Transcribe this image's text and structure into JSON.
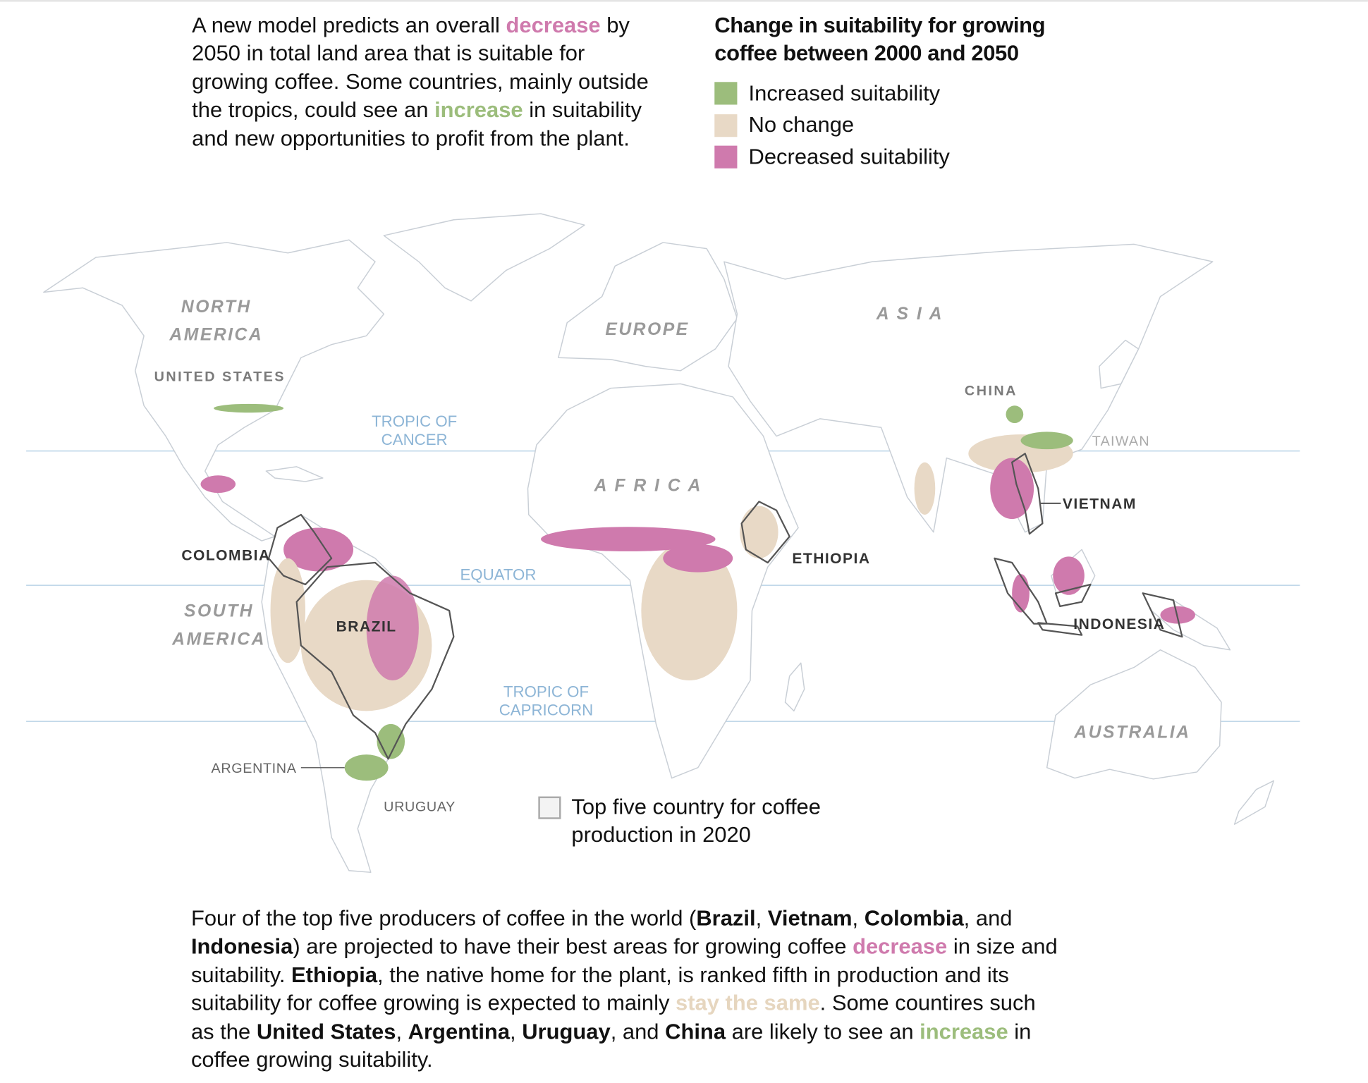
{
  "intro": {
    "part1": "A new model predicts an overall ",
    "decrease": "decrease",
    "part2": " by 2050 in total land area that is suitable for growing coffee. Some countries, mainly outside the tropics, could see an ",
    "increase": "increase",
    "part3": " in suitability and new opportunities to profit from the plant."
  },
  "legend": {
    "title": "Change in suitability for growing coffee between 2000 and 2050",
    "items": [
      {
        "label": "Increased suitability",
        "color": "#9cbd7c"
      },
      {
        "label": "No change",
        "color": "#e8d9c6"
      },
      {
        "label": "Decreased suitability",
        "color": "#cf7aad"
      }
    ]
  },
  "map": {
    "continents": {
      "north_america_1": "NORTH",
      "north_america_2": "AMERICA",
      "south_america_1": "SOUTH",
      "south_america_2": "AMERICA",
      "europe": "EUROPE",
      "asia": "A S I A",
      "africa": "A F R I C A",
      "australia": "AUSTRALIA"
    },
    "countries": {
      "united_states": "UNITED STATES",
      "china": "CHINA",
      "taiwan": "TAIWAN",
      "argentina": "ARGENTINA",
      "uruguay": "URUGUAY"
    },
    "top_five": {
      "colombia": "COLOMBIA",
      "brazil": "BRAZIL",
      "ethiopia": "ETHIOPIA",
      "vietnam": "VIETNAM",
      "indonesia": "INDONESIA"
    },
    "lines": {
      "cancer_1": "TROPIC OF",
      "cancer_2": "CANCER",
      "equator": "EQUATOR",
      "capricorn_1": "TROPIC OF",
      "capricorn_2": "CAPRICORN"
    },
    "top_five_legend": "Top five country for coffee production in 2020",
    "colors": {
      "increase": "#9cbd7c",
      "no_change": "#e8d9c6",
      "decrease": "#cf7aad",
      "tropic_line": "#b9d3e6"
    }
  },
  "outro": {
    "s1": "Four of the top five producers of coffee in the world (",
    "brazil": "Brazil",
    "c1": ", ",
    "vietnam": "Vietnam",
    "c2": ", ",
    "colombia": "Colombia",
    "c3": ", and ",
    "indonesia": "Indonesia",
    "s2": ") are projected to have their best areas for growing coffee ",
    "decrease": "decrease",
    "s3": " in size and suitability. ",
    "ethiopia": "Ethiopia",
    "s4": ", the native home for the plant, is ranked fifth in production and its suitability for coffee growing is expected to mainly ",
    "stay": "stay the same",
    "s5": ". Some countires such as the ",
    "us": "United States",
    "c4": ", ",
    "argentina": "Argentina",
    "c5": ", ",
    "uruguay": "Uruguay",
    "c6": ", and ",
    "china": "China",
    "s6": " are likely to see an ",
    "increase": "increase",
    "s7": " in coffee growing suitability."
  }
}
